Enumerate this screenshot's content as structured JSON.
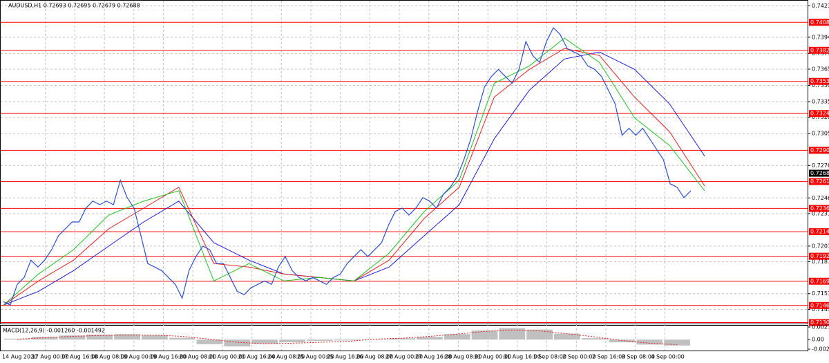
{
  "chart_data": {
    "type": "line",
    "title": "AUDUSD,H1  0.72693 0.72695 0.72679 0.72688",
    "categories": [
      "14 Aug 2020",
      "17 Aug 00:00",
      "17 Aug 16:00",
      "18 Aug 08:00",
      "19 Aug 00:00",
      "19 Aug 16:00",
      "20 Aug 08:00",
      "21 Aug 00:00",
      "21 Aug 16:00",
      "24 Aug 08:00",
      "25 Aug 00:00",
      "25 Aug 16:00",
      "26 Aug 08:00",
      "27 Aug 00:00",
      "27 Aug 16:00",
      "28 Aug 08:00",
      "31 Aug 00:00",
      "31 Aug 16:00",
      "1 Sep 08:00",
      "2 Sep 00:00",
      "2 Sep 16:00",
      "3 Sep 08:00",
      "4 Sep 00:00"
    ],
    "price": {
      "color": "#2b4fd0",
      "values": [
        0.71501,
        0.71469,
        0.71661,
        0.71725,
        0.71885,
        0.71821,
        0.71885,
        0.71982,
        0.7211,
        0.72174,
        0.72238,
        0.72238,
        0.72366,
        0.7243,
        0.72398,
        0.7243,
        0.72398,
        0.72623,
        0.72462,
        0.72366,
        0.7211,
        0.71853,
        0.71821,
        0.71789,
        0.71725,
        0.71661,
        0.71533,
        0.71789,
        0.71918,
        0.72014,
        0.71982,
        0.71853,
        0.71853,
        0.71725,
        0.71597,
        0.71565,
        0.71629,
        0.71661,
        0.71693,
        0.71661,
        0.71821,
        0.71918,
        0.71789,
        0.71725,
        0.71693,
        0.71725,
        0.71693,
        0.71661,
        0.71725,
        0.71757,
        0.71853,
        0.71918,
        0.71982,
        0.71918,
        0.71982,
        0.72046,
        0.72206,
        0.72334,
        0.72366,
        0.72302,
        0.72366,
        0.72462,
        0.7243,
        0.72366,
        0.72494,
        0.72559,
        0.72655,
        0.72815,
        0.73007,
        0.73264,
        0.73488,
        0.73584,
        0.73648,
        0.73584,
        0.7352,
        0.73648,
        0.73905,
        0.73776,
        0.73712,
        0.73905,
        0.74033,
        0.73969,
        0.73841,
        0.73808,
        0.73776,
        0.7368,
        0.73648,
        0.73584,
        0.73456,
        0.73328,
        0.73039,
        0.73103,
        0.73039,
        0.73103,
        0.73007,
        0.72911,
        0.72815,
        0.72591,
        0.72559,
        0.72462,
        0.72526
      ]
    },
    "moving_averages": [
      {
        "color": "#1a1adc",
        "values": [
          0.71469,
          0.71597,
          0.71789,
          0.72014,
          0.72238,
          0.7243,
          0.72046,
          0.71885,
          0.71757,
          0.71725,
          0.71693,
          0.71821,
          0.7211,
          0.72398,
          0.73007,
          0.73456,
          0.73744,
          0.73808,
          0.73648,
          0.73328,
          0.72847
        ]
      },
      {
        "color": "#e02020",
        "values": [
          0.71469,
          0.71693,
          0.71885,
          0.72174,
          0.72366,
          0.72559,
          0.71853,
          0.71821,
          0.71757,
          0.71725,
          0.71693,
          0.71885,
          0.7227,
          0.72559,
          0.73392,
          0.73648,
          0.73841,
          0.73776,
          0.73392,
          0.73071,
          0.72571
        ]
      },
      {
        "color": "#20c020",
        "values": [
          0.71469,
          0.71757,
          0.71982,
          0.72302,
          0.7243,
          0.72526,
          0.71693,
          0.71853,
          0.71693,
          0.71725,
          0.71693,
          0.7195,
          0.72334,
          0.72623,
          0.7352,
          0.7368,
          0.73937,
          0.73712,
          0.732,
          0.72944,
          0.72526
        ]
      }
    ],
    "ylim": [
      0.71305,
      0.7427
    ],
    "yticks": [
      0.74235,
      0.73945,
      0.73795,
      {
        "value": 0.7365,
        "label": "0.73650"
      },
      {
        "value": 0.735,
        "label": "0.73500"
      },
      {
        "value": 0.7335,
        "label": "0.73350"
      },
      0.73205,
      0.73055,
      {
        "value": 0.7276,
        "label": "0.72760"
      },
      {
        "value": 0.7246,
        "label": "0.72460"
      },
      0.72315,
      0.72015,
      {
        "value": 0.7187,
        "label": "0.71870"
      },
      0.71575,
      {
        "value": 0.7143,
        "label": "0.71430"
      }
    ],
    "levels": [
      0.74083,
      0.73824,
      0.73537,
      {
        "value": 0.7324,
        "label": "0.73240"
      },
      {
        "value": 0.729,
        "label": "0.72900"
      },
      0.72611,
      0.72363,
      0.72148,
      0.71921,
      {
        "value": 0.7169,
        "label": "0.71690"
      },
      0.71466,
      0.71308
    ],
    "level_color": "#ff0000",
    "last_price": 0.72688,
    "grid": true,
    "macd": {
      "label": "MACD(12,26,9) -0.001260 -0.001492",
      "histogram": [
        0.0002,
        0.0006,
        0.0009,
        0.0011,
        0.0012,
        0.001,
        0.0004,
        -0.001,
        -0.0015,
        -0.0009,
        -0.0006,
        -0.0003,
        -0.0002,
        0.0001,
        0.0003,
        0.0006,
        0.0012,
        0.002,
        0.0025,
        0.0022,
        0.0013,
        0.0003,
        -0.0006,
        -0.0011,
        -0.0013
      ],
      "signal": [
        0.0001,
        0.0004,
        0.0007,
        0.0009,
        0.001,
        0.001,
        0.0007,
        0.0001,
        -0.0006,
        -0.0009,
        -0.0008,
        -0.0006,
        -0.0004,
        0.0001,
        0.0003,
        0.0007,
        0.0012,
        0.0018,
        0.0021,
        0.0019,
        0.0013,
        0.0006,
        -0.0002,
        -0.0008,
        -0.0011
      ],
      "ylim": [
        -0.0021,
        0.002754
      ],
      "yticks": [
        0.002754,
        {
          "value": 0,
          "label": "0.00"
        },
        {
          "value": -0.0021,
          "label": "-0.00210"
        }
      ]
    }
  }
}
